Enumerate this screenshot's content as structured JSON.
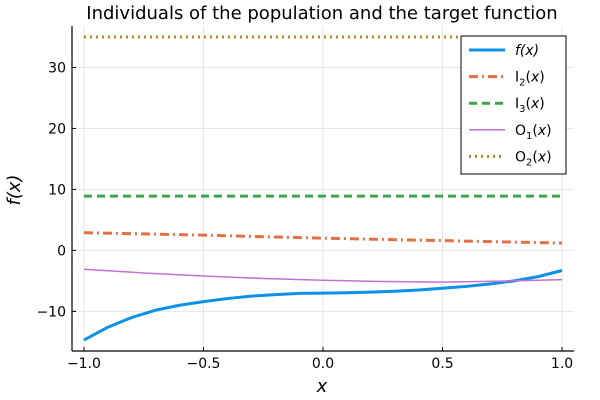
{
  "chart_data": {
    "type": "line",
    "title": "Individuals of the population and the target function",
    "xlabel": "x",
    "ylabel": "f(x)",
    "xlim": [
      -1.05,
      1.05
    ],
    "ylim": [
      -16.5,
      36.8
    ],
    "xticks": [
      -1.0,
      -0.5,
      0.0,
      0.5,
      1.0
    ],
    "xtick_labels": [
      "−1.0",
      "−0.5",
      "0.0",
      "0.5",
      "1.0"
    ],
    "yticks": [
      -10,
      0,
      10,
      20,
      30
    ],
    "ytick_labels": [
      "−10",
      "0",
      "10",
      "20",
      "30"
    ],
    "grid": true,
    "legend_position": "top-right",
    "series": [
      {
        "name": "f(x)",
        "name_parts": {
          "base": "f(x)",
          "sub": "",
          "rest": ""
        },
        "italic": true,
        "color": "#0b91e5",
        "dash": "solid",
        "width": 3,
        "x": [
          -1.0,
          -0.9,
          -0.8,
          -0.7,
          -0.6,
          -0.5,
          -0.4,
          -0.3,
          -0.2,
          -0.1,
          0.0,
          0.1,
          0.2,
          0.3,
          0.4,
          0.5,
          0.6,
          0.7,
          0.8,
          0.9,
          1.0
        ],
        "y": [
          -14.7,
          -12.6,
          -11.0,
          -9.8,
          -9.0,
          -8.4,
          -7.9,
          -7.5,
          -7.25,
          -7.05,
          -7.0,
          -6.95,
          -6.85,
          -6.7,
          -6.5,
          -6.2,
          -5.9,
          -5.5,
          -5.0,
          -4.3,
          -3.3
        ]
      },
      {
        "name": "I2(x)",
        "name_parts": {
          "base": "I",
          "sub": "2",
          "rest": "(x)"
        },
        "italic": false,
        "color": "#e26f46",
        "dash": "dashdot",
        "width": 3,
        "x": [
          -1.0,
          -0.5,
          0.0,
          0.5,
          1.0
        ],
        "y": [
          2.9,
          2.5,
          2.0,
          1.6,
          1.2
        ]
      },
      {
        "name": "I3(x)",
        "name_parts": {
          "base": "I",
          "sub": "3",
          "rest": "(x)"
        },
        "italic": false,
        "color": "#3da44d",
        "dash": "dash",
        "width": 3,
        "x": [
          -1.0,
          1.0
        ],
        "y": [
          8.9,
          8.9
        ]
      },
      {
        "name": "O1(x)",
        "name_parts": {
          "base": "O",
          "sub": "1",
          "rest": "(x)"
        },
        "italic": false,
        "color": "#c271d2",
        "dash": "solid",
        "width": 1.5,
        "x": [
          -1.0,
          -0.75,
          -0.5,
          -0.25,
          0.0,
          0.25,
          0.5,
          0.75,
          1.0
        ],
        "y": [
          -3.1,
          -3.7,
          -4.2,
          -4.6,
          -4.9,
          -5.1,
          -5.2,
          -5.05,
          -4.8
        ]
      },
      {
        "name": "O2(x)",
        "name_parts": {
          "base": "O",
          "sub": "2",
          "rest": "(x)"
        },
        "italic": false,
        "color": "#ac8d18",
        "dash": "dot",
        "width": 3,
        "x": [
          -1.0,
          1.0
        ],
        "y": [
          35.0,
          35.0
        ]
      }
    ]
  }
}
